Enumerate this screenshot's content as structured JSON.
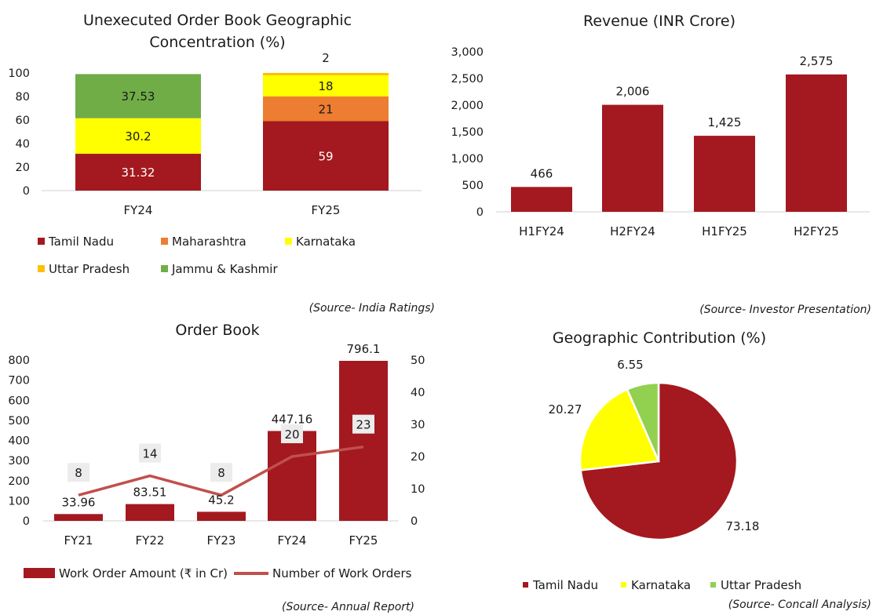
{
  "colors": {
    "tamil_nadu": "#a3191f",
    "maharashtra": "#ed7d31",
    "karnataka": "#ffff00",
    "uttar_pradesh": "#ffc000",
    "jammu_kashmir": "#70ad47",
    "pie_uttar_pradesh": "#92d050",
    "line": "#c0504d",
    "label_box": "#ececec"
  },
  "chart_data": [
    {
      "id": "order-book-geo",
      "type": "bar",
      "stacked": true,
      "title": "Unexecuted Order Book  Geographic Concentration (%)",
      "title_lines": [
        "Unexecuted Order Book  Geographic",
        "Concentration (%)"
      ],
      "categories": [
        "FY24",
        "FY25"
      ],
      "ylim": [
        0,
        100
      ],
      "yticks": [
        "0",
        "20",
        "40",
        "60",
        "80",
        "100"
      ],
      "series": [
        {
          "name": "Tamil Nadu",
          "color_key": "tamil_nadu",
          "values": [
            31.32,
            59
          ],
          "labels": [
            "31.32",
            "59"
          ]
        },
        {
          "name": "Maharashtra",
          "color_key": "maharashtra",
          "values": [
            0,
            21
          ],
          "labels": [
            "",
            "21"
          ]
        },
        {
          "name": "Karnataka",
          "color_key": "karnataka",
          "values": [
            30.2,
            18
          ],
          "labels": [
            "30.2",
            "18"
          ]
        },
        {
          "name": "Uttar Pradesh",
          "color_key": "uttar_pradesh",
          "values": [
            0,
            2
          ],
          "labels": [
            "",
            "2"
          ]
        },
        {
          "name": "Jammu & Kashmir",
          "color_key": "jammu_kashmir",
          "values": [
            37.53,
            0
          ],
          "labels": [
            "37.53",
            ""
          ]
        }
      ],
      "legend": [
        "Tamil Nadu",
        "Maharashtra",
        "Karnataka",
        "Uttar Pradesh",
        "Jammu & Kashmir"
      ],
      "source": "(Source- India Ratings)"
    },
    {
      "id": "revenue",
      "type": "bar",
      "title": "Revenue (INR Crore)",
      "categories": [
        "H1FY24",
        "H2FY24",
        "H1FY25",
        "H2FY25"
      ],
      "values": [
        466,
        2006,
        1425,
        2575
      ],
      "labels": [
        "466",
        "2,006",
        "1,425",
        "2,575"
      ],
      "ylim": [
        0,
        3000
      ],
      "yticks": [
        "0",
        "500",
        "1,000",
        "1,500",
        "2,000",
        "2,500",
        "3,000"
      ],
      "source": "(Source- Investor Presentation)"
    },
    {
      "id": "order-book",
      "type": "bar",
      "title": "Order Book",
      "categories": [
        "FY21",
        "FY22",
        "FY23",
        "FY24",
        "FY25"
      ],
      "series": [
        {
          "name": "Work Order Amount (₹ in Cr)",
          "type": "bar",
          "axis": "left",
          "values": [
            33.96,
            83.51,
            45.2,
            447.16,
            796.1
          ],
          "labels": [
            "33.96",
            "83.51",
            "45.2",
            "447.16",
            "796.1"
          ]
        },
        {
          "name": "Number of Work Orders",
          "type": "line",
          "axis": "right",
          "values": [
            8,
            14,
            8,
            20,
            23
          ],
          "labels": [
            "8",
            "14",
            "8",
            "20",
            "23"
          ]
        }
      ],
      "ylim_left": [
        0,
        800
      ],
      "ylim_right": [
        0,
        50
      ],
      "yticks_left": [
        "0",
        "100",
        "200",
        "300",
        "400",
        "500",
        "600",
        "700",
        "800"
      ],
      "yticks_right": [
        "0",
        "10",
        "20",
        "30",
        "40",
        "50"
      ],
      "source": "(Source- Annual Report)"
    },
    {
      "id": "geo-contribution",
      "type": "pie",
      "title": "Geographic Contribution (%)",
      "labels": [
        "Tamil Nadu",
        "Karnataka",
        "Uttar Pradesh"
      ],
      "values": [
        73.18,
        20.27,
        6.55
      ],
      "value_labels": [
        "73.18",
        "20.27",
        "6.55"
      ],
      "color_keys": [
        "tamil_nadu",
        "karnataka",
        "pie_uttar_pradesh"
      ],
      "source": "(Source- Concall Analysis)"
    }
  ]
}
